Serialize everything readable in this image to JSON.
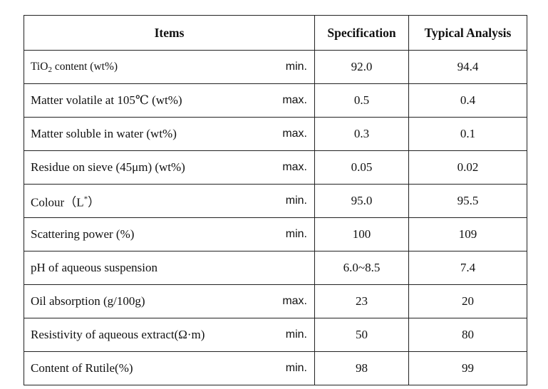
{
  "header": {
    "items": "Items",
    "specification": "Specification",
    "typical": "Typical Analysis"
  },
  "rows": [
    {
      "name_pre": "TiO",
      "name_sub": "2",
      "name_post": " content (wt%)",
      "limit": "min.",
      "spec": "92.0",
      "typical": "94.4"
    },
    {
      "name": "Matter volatile at 105℃ (wt%)",
      "limit": "max.",
      "spec": "0.5",
      "typical": "0.4"
    },
    {
      "name": "Matter soluble in water (wt%)",
      "limit": "max.",
      "spec": "0.3",
      "typical": "0.1"
    },
    {
      "name": "Residue on sieve (45μm) (wt%)",
      "limit": "max.",
      "spec": "0.05",
      "typical": "0.02"
    },
    {
      "name_pre": "Colour（L",
      "name_sup": "*",
      "name_post": "）",
      "limit": "min.",
      "spec": "95.0",
      "typical": "95.5"
    },
    {
      "name": "Scattering power (%)",
      "limit": "min.",
      "spec": "100",
      "typical": "109"
    },
    {
      "name": "pH of aqueous suspension",
      "limit": "",
      "spec": "6.0~8.5",
      "typical": "7.4"
    },
    {
      "name": "Oil absorption (g/100g)",
      "limit": "max.",
      "spec": "23",
      "typical": "20"
    },
    {
      "name": "Resistivity of aqueous extract(Ω·m)",
      "limit": "min.",
      "spec": "50",
      "typical": "80"
    },
    {
      "name": "Content of Rutile(%)",
      "limit": "min.",
      "spec": "98",
      "typical": "99"
    }
  ]
}
